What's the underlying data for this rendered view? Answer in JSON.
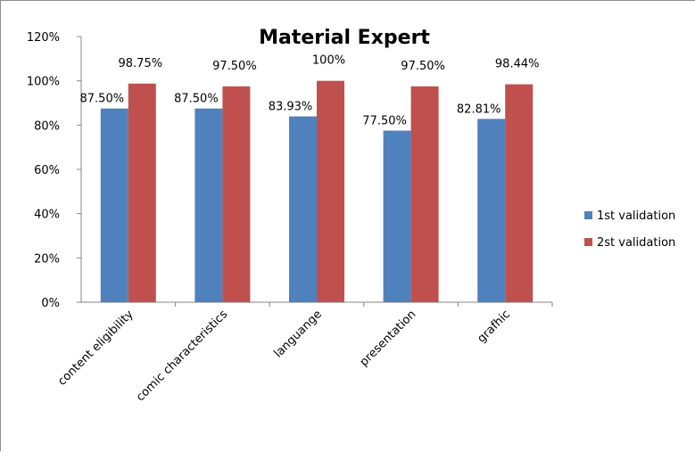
{
  "chart_data": {
    "type": "bar",
    "title": "Material Expert",
    "xlabel": "",
    "ylabel": "",
    "categories": [
      "content eligibility",
      "comic characteristics",
      "languange",
      "presentation",
      "grafhic"
    ],
    "series": [
      {
        "name": "1st validation",
        "values": [
          87.5,
          87.5,
          83.93,
          77.5,
          82.81
        ],
        "labels": [
          "87.50%",
          "87.50%",
          "83.93%",
          "77.50%",
          "82.81%"
        ],
        "color": "#4F81BD"
      },
      {
        "name": "2st validation",
        "values": [
          98.75,
          97.5,
          100,
          97.5,
          98.44
        ],
        "labels": [
          "98.75%",
          "97.50%",
          "100%",
          "97.50%",
          "98.44%"
        ],
        "color": "#C0504D"
      }
    ],
    "yticks": [
      "0%",
      "20%",
      "40%",
      "60%",
      "80%",
      "100%",
      "120%"
    ],
    "ylim": [
      0,
      120
    ],
    "grid": false,
    "legend": "right"
  }
}
